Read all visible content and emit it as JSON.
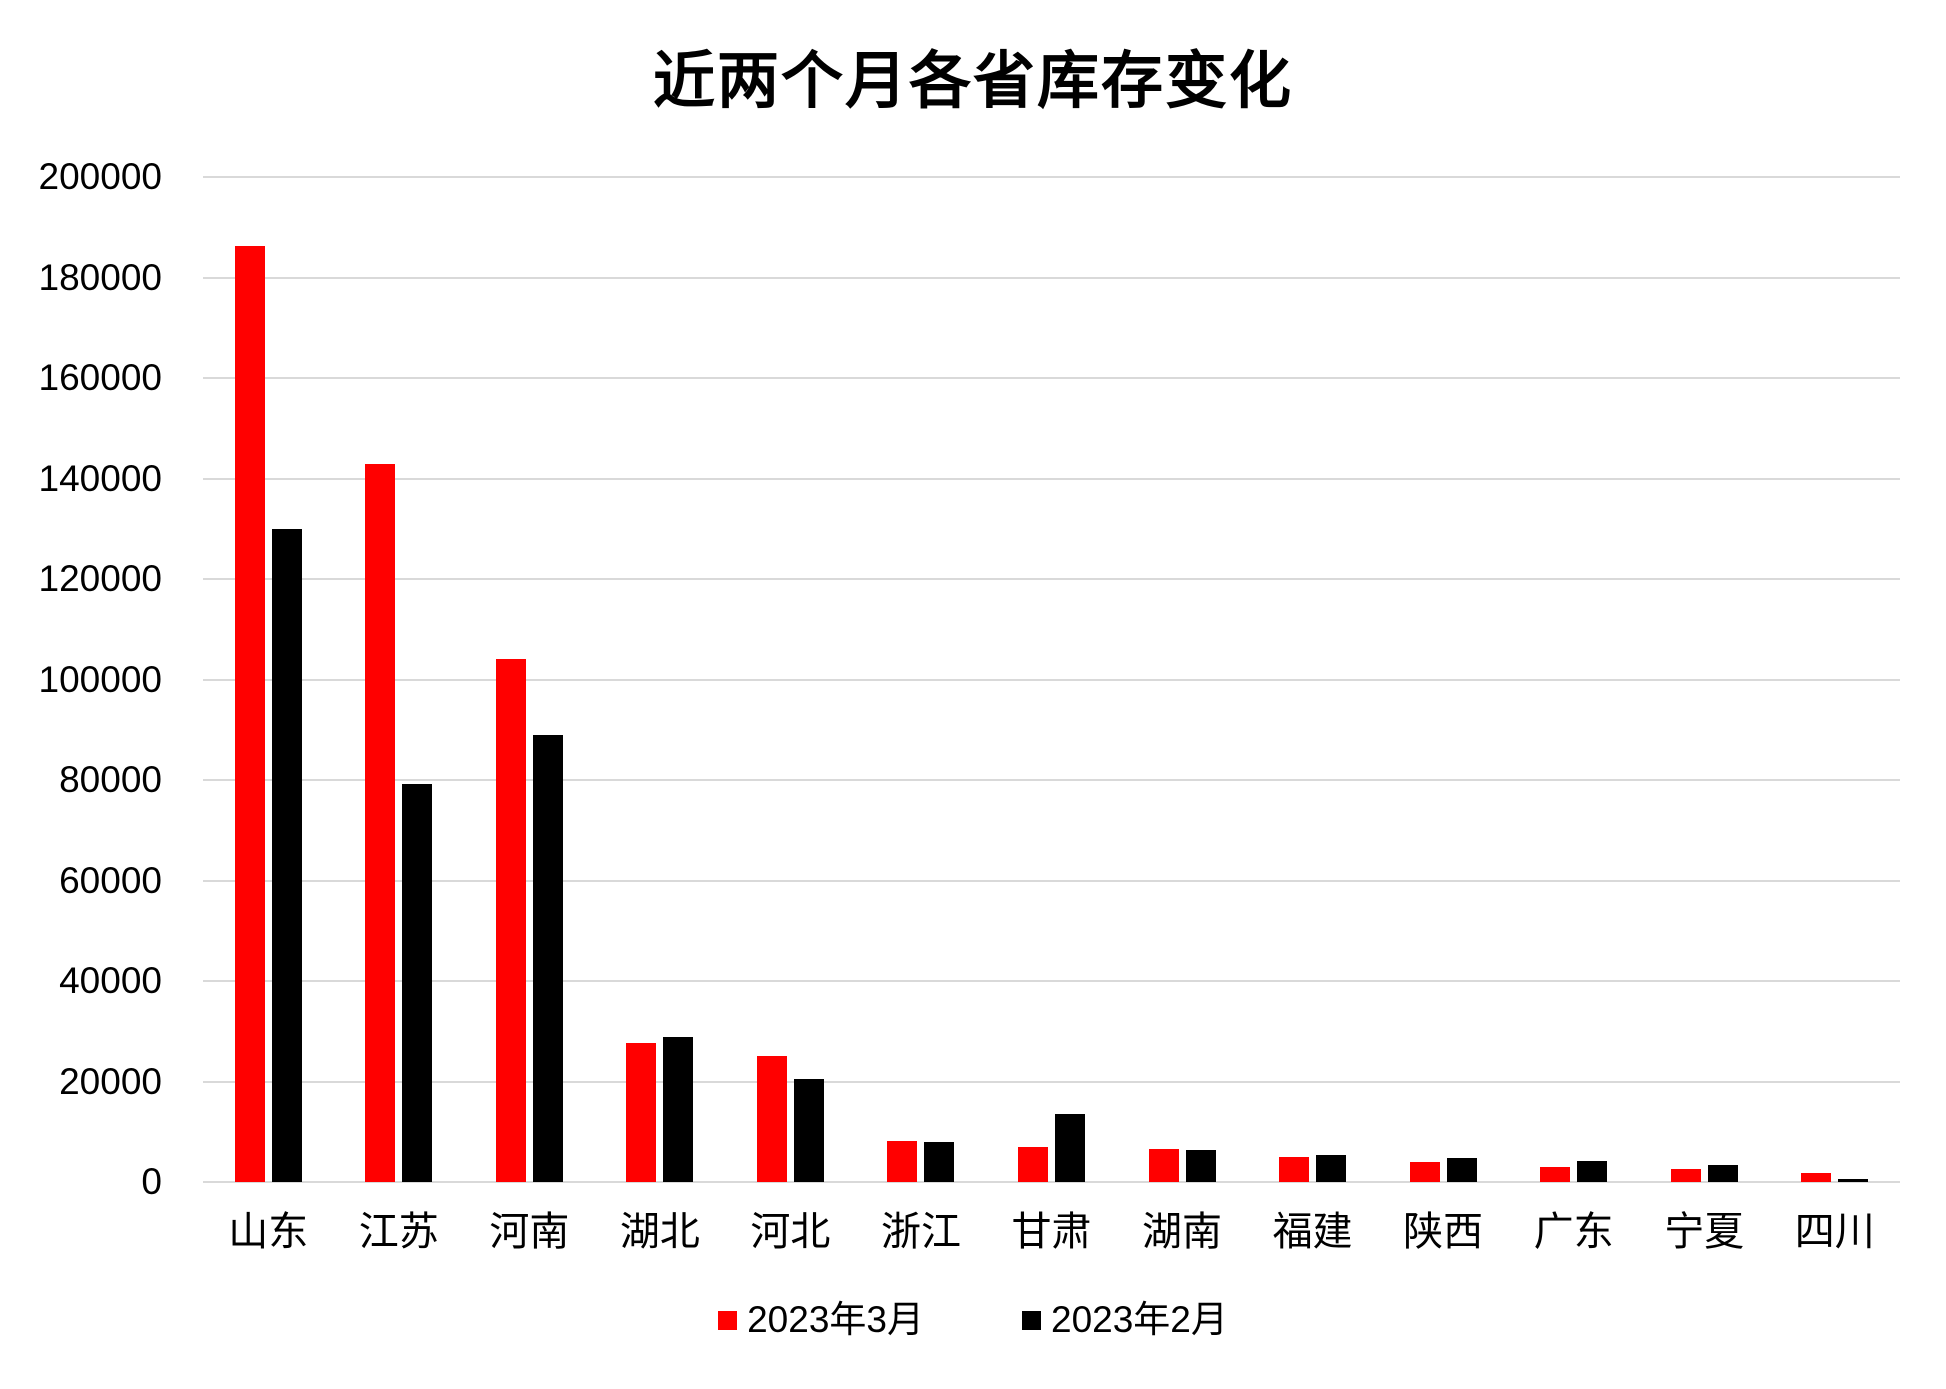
{
  "title": "近两个月各省库存变化",
  "colors": {
    "series_march": "#ff0000",
    "series_february": "#000000",
    "gridline": "#d9d9d9",
    "background": "#ffffff",
    "text": "#000000"
  },
  "chart_data": {
    "type": "bar",
    "title": "近两个月各省库存变化",
    "categories": [
      "山东",
      "江苏",
      "河南",
      "湖北",
      "河北",
      "浙江",
      "甘肃",
      "湖南",
      "福建",
      "陕西",
      "广东",
      "宁夏",
      "四川"
    ],
    "series": [
      {
        "name": "2023年3月",
        "color": "#ff0000",
        "values": [
          186200,
          142800,
          104100,
          27700,
          25100,
          8200,
          7000,
          6500,
          4900,
          4000,
          2900,
          2500,
          1800
        ]
      },
      {
        "name": "2023年2月",
        "color": "#000000",
        "values": [
          130000,
          79200,
          89000,
          28800,
          20400,
          8000,
          13600,
          6300,
          5400,
          4700,
          4100,
          3400,
          500
        ]
      }
    ],
    "xlabel": "",
    "ylabel": "",
    "ylim": [
      0,
      200000
    ],
    "ytick_step": 20000,
    "ytick_labels": [
      "0",
      "20000",
      "40000",
      "60000",
      "80000",
      "100000",
      "120000",
      "140000",
      "160000",
      "180000",
      "200000"
    ],
    "grid": true,
    "legend_position": "bottom"
  }
}
